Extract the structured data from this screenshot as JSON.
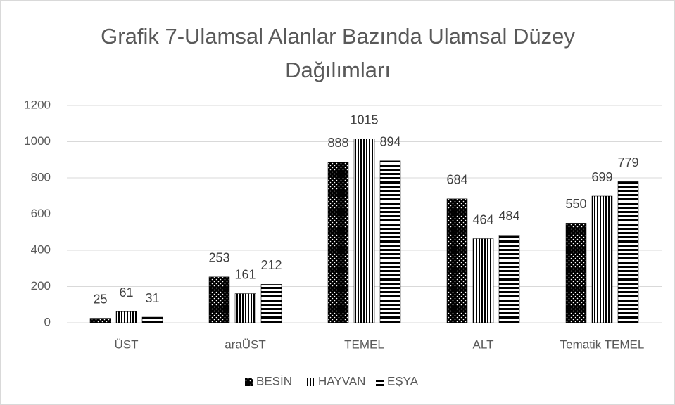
{
  "chart_data": {
    "type": "bar",
    "title": "Grafik 7-Ulamsal Alanlar Bazında Ulamsal Düzey Dağılımları",
    "categories": [
      "ÜST",
      "araÜST",
      "TEMEL",
      "ALT",
      "Tematik TEMEL"
    ],
    "series": [
      {
        "name": "BESİN",
        "color": "#000000",
        "pattern": "dots",
        "values": [
          25,
          253,
          888,
          684,
          550
        ]
      },
      {
        "name": "HAYVAN",
        "color": "#000000",
        "pattern": "vertical",
        "values": [
          61,
          161,
          1015,
          464,
          699
        ]
      },
      {
        "name": "EŞYA",
        "color": "#000000",
        "pattern": "horizontal",
        "values": [
          31,
          212,
          894,
          484,
          779
        ]
      }
    ],
    "ylim": [
      0,
      1200
    ],
    "yticks": [
      0,
      200,
      400,
      600,
      800,
      1000,
      1200
    ],
    "grid": true,
    "legend": "bottom"
  }
}
